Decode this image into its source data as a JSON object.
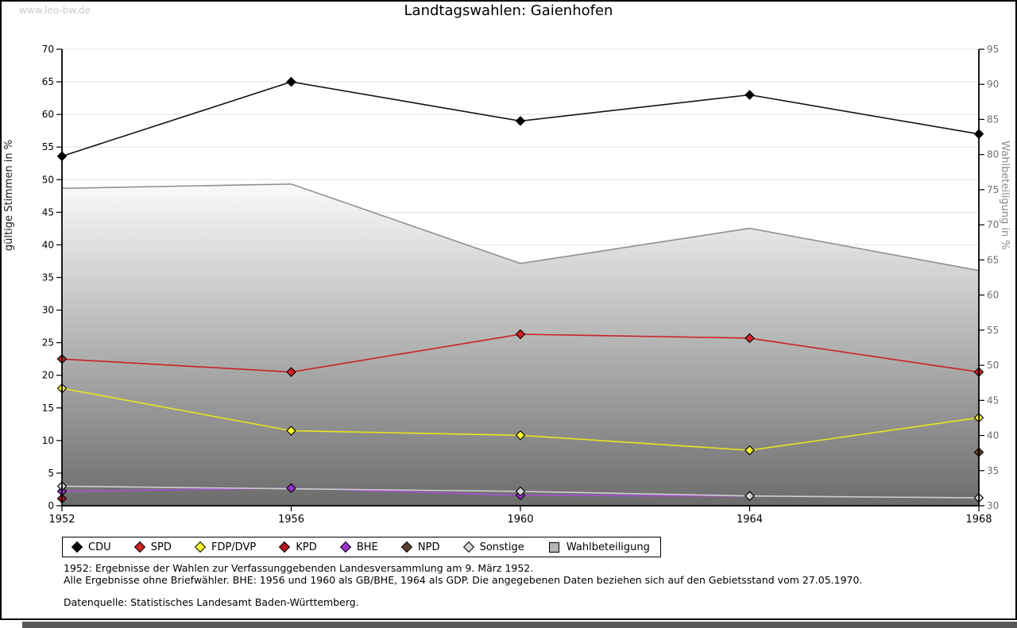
{
  "watermark": "www.leo-bw.de",
  "title": "Landtagswahlen: Gaienhofen",
  "footer": {
    "line1": "1952: Ergebnisse der Wahlen zur Verfassunggebenden Landesversammlung am 9. März 1952.",
    "line2": "Alle Ergebnisse ohne Briefwähler. BHE: 1956 und 1960 als GB/BHE, 1964 als GDP. Die angegebenen Daten beziehen sich auf den Gebietsstand vom 27.05.1970.",
    "source": "Datenquelle: Statistisches Landesamt Baden-Württemberg."
  },
  "legend": {
    "items": [
      {
        "label": "CDU",
        "shape": "diamond",
        "color": "#000000"
      },
      {
        "label": "SPD",
        "shape": "diamond",
        "color": "#d42222"
      },
      {
        "label": "FDP/DVP",
        "shape": "diamond",
        "color": "#ffff2e"
      },
      {
        "label": "KPD",
        "shape": "diamond",
        "color": "#b51320"
      },
      {
        "label": "BHE",
        "shape": "diamond",
        "color": "#9933cc"
      },
      {
        "label": "NPD",
        "shape": "diamond",
        "color": "#5e3f2e"
      },
      {
        "label": "Sonstige",
        "shape": "diamond",
        "color": "#d4d4d4"
      },
      {
        "label": "Wahlbeteiligung",
        "shape": "square",
        "color": "#b4b4b4"
      }
    ]
  },
  "chart_data": {
    "type": "line",
    "title": "Landtagswahlen: Gaienhofen",
    "x_categories": [
      1952,
      1956,
      1960,
      1964,
      1968
    ],
    "left_axis": {
      "label": "gültige Stimmen in %",
      "min": 0,
      "max": 70,
      "step": 5
    },
    "right_axis": {
      "label": "Wahlbeteiligung in %",
      "min": 30,
      "max": 95,
      "step": 5
    },
    "grid": "horizontal",
    "legend_position": "bottom",
    "series": [
      {
        "name": "CDU",
        "axis": "left",
        "line_color": "#141414",
        "marker_color": "#000000",
        "x": [
          1952,
          1956,
          1960,
          1964,
          1968
        ],
        "values": [
          53.6,
          65.0,
          59.0,
          63.0,
          57.0
        ]
      },
      {
        "name": "SPD",
        "axis": "left",
        "line_color": "#cc2222",
        "marker_color": "#d42222",
        "x": [
          1952,
          1956,
          1960,
          1964,
          1968
        ],
        "values": [
          22.5,
          20.5,
          26.3,
          25.7,
          20.5
        ]
      },
      {
        "name": "FDP/DVP",
        "axis": "left",
        "line_color": "#e6e61e",
        "marker_color": "#ffff2e",
        "x": [
          1952,
          1956,
          1960,
          1964,
          1968
        ],
        "values": [
          18.0,
          11.5,
          10.8,
          8.5,
          13.5
        ]
      },
      {
        "name": "KPD",
        "axis": "left",
        "line_color": "#b51320",
        "marker_color": "#b51320",
        "x": [
          1952
        ],
        "values": [
          1.1
        ]
      },
      {
        "name": "BHE",
        "axis": "left",
        "line_color": "#a44fd6",
        "marker_color": "#9933cc",
        "x": [
          1952,
          1956,
          1960,
          1964
        ],
        "values": [
          2.2,
          2.7,
          1.6,
          1.5
        ]
      },
      {
        "name": "NPD",
        "axis": "left",
        "line_color": "#5e3f2e",
        "marker_color": "#5e3f2e",
        "x": [
          1968
        ],
        "values": [
          8.2
        ]
      },
      {
        "name": "Sonstige",
        "axis": "left",
        "line_color": "#cfcfcf",
        "marker_color": "#d4d4d4",
        "x": [
          1952,
          1960,
          1964,
          1968
        ],
        "values": [
          3.0,
          2.2,
          1.5,
          1.2
        ]
      }
    ],
    "area_series": {
      "name": "Wahlbeteiligung",
      "axis": "right",
      "x": [
        1952,
        1956,
        1960,
        1964,
        1968
      ],
      "values": [
        75.2,
        75.8,
        64.5,
        69.5,
        63.5
      ],
      "boundary_color": "#909090",
      "fill_top": "#fafafa",
      "fill_bottom": "#6c6c6c"
    }
  }
}
